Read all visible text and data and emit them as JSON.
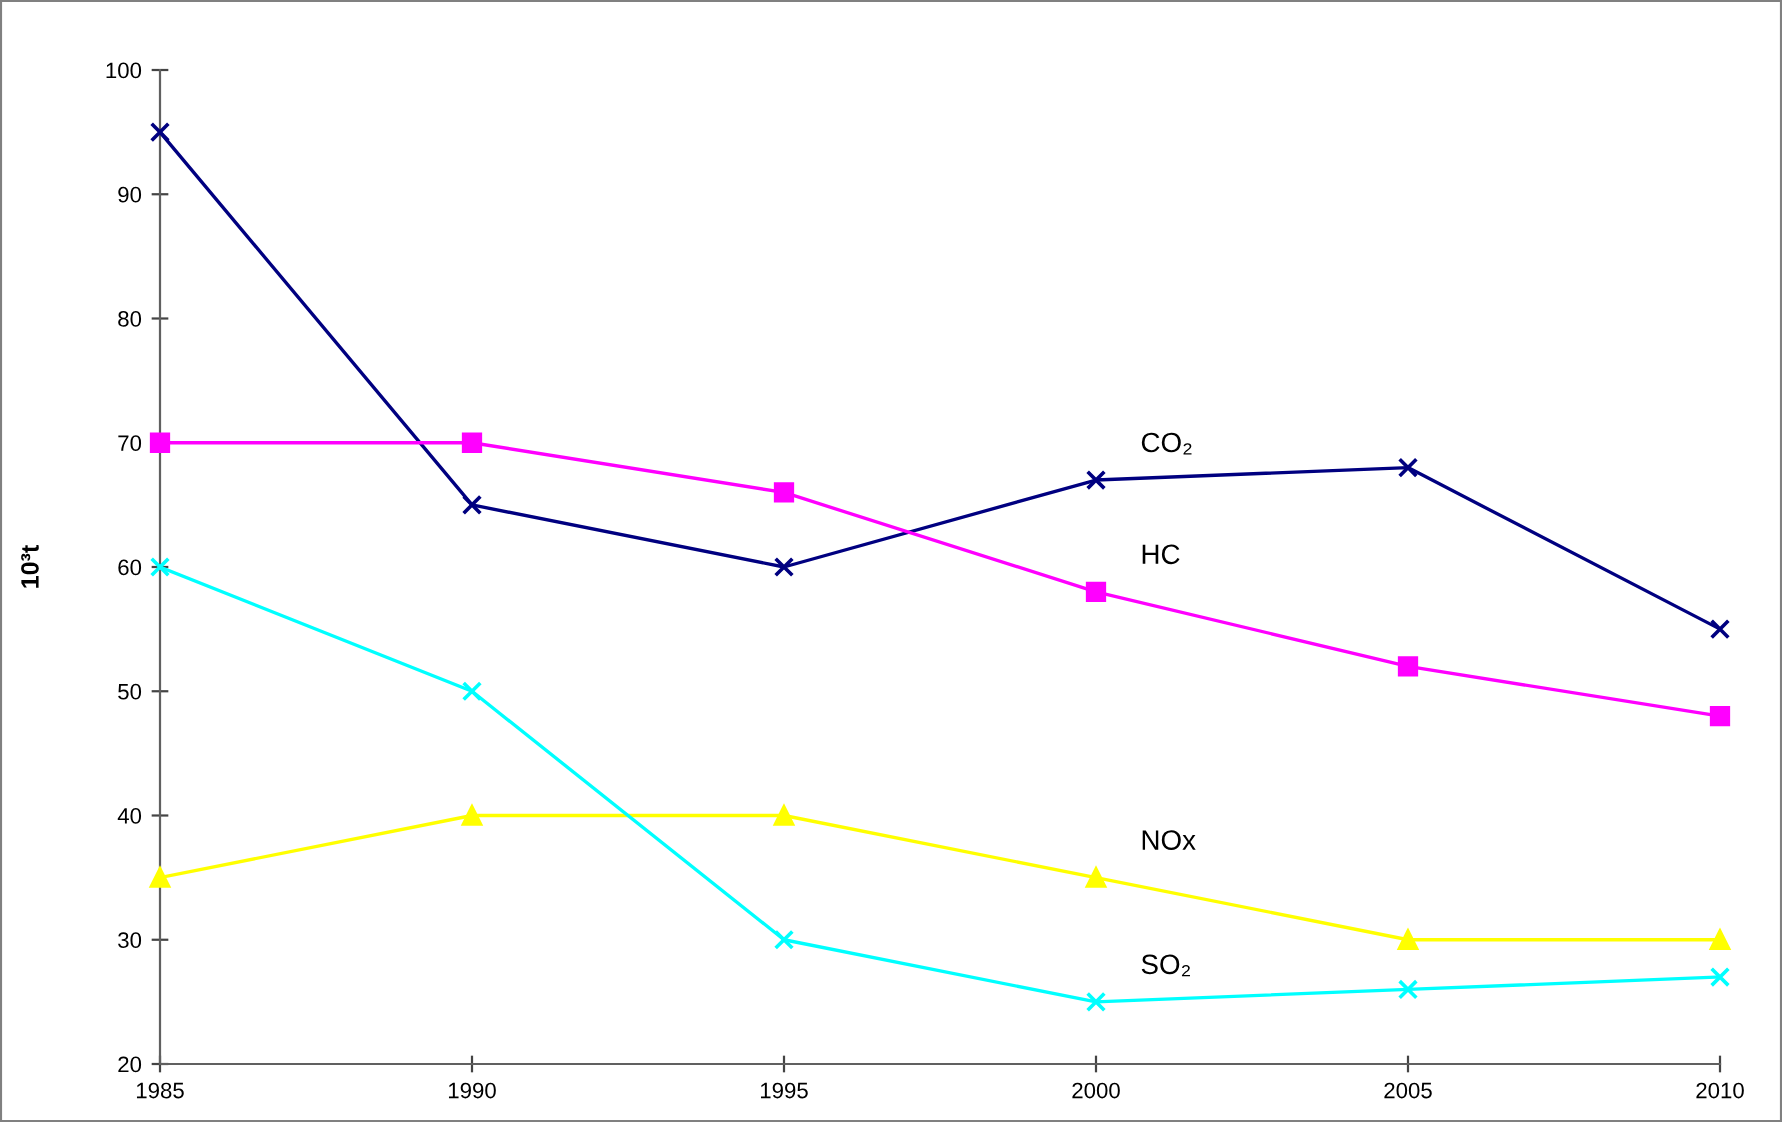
{
  "chart_data": {
    "type": "line",
    "ylabel": "10³t",
    "x": [
      1985,
      1990,
      1995,
      2000,
      2005,
      2010
    ],
    "series": [
      {
        "name": "CO₂",
        "color": "#000080",
        "marker": "cross",
        "values": [
          95,
          65,
          60,
          67,
          68,
          55
        ]
      },
      {
        "name": "HC",
        "color": "#ff00ff",
        "marker": "square",
        "values": [
          70,
          70,
          66,
          58,
          52,
          48
        ]
      },
      {
        "name": "NOx",
        "color": "#ffff00",
        "marker": "triangle",
        "values": [
          35,
          40,
          40,
          35,
          30,
          30
        ]
      },
      {
        "name": "SO₂",
        "color": "#00ffff",
        "marker": "cross",
        "values": [
          60,
          50,
          30,
          25,
          26,
          27
        ]
      }
    ],
    "xlim": [
      1985,
      2010
    ],
    "xticks": [
      1985,
      1990,
      1995,
      2000,
      2005,
      2010
    ],
    "ylim": [
      20,
      100
    ],
    "yticks": [
      20,
      30,
      40,
      50,
      60,
      70,
      80,
      90,
      100
    ],
    "grid": false,
    "legend": false
  }
}
